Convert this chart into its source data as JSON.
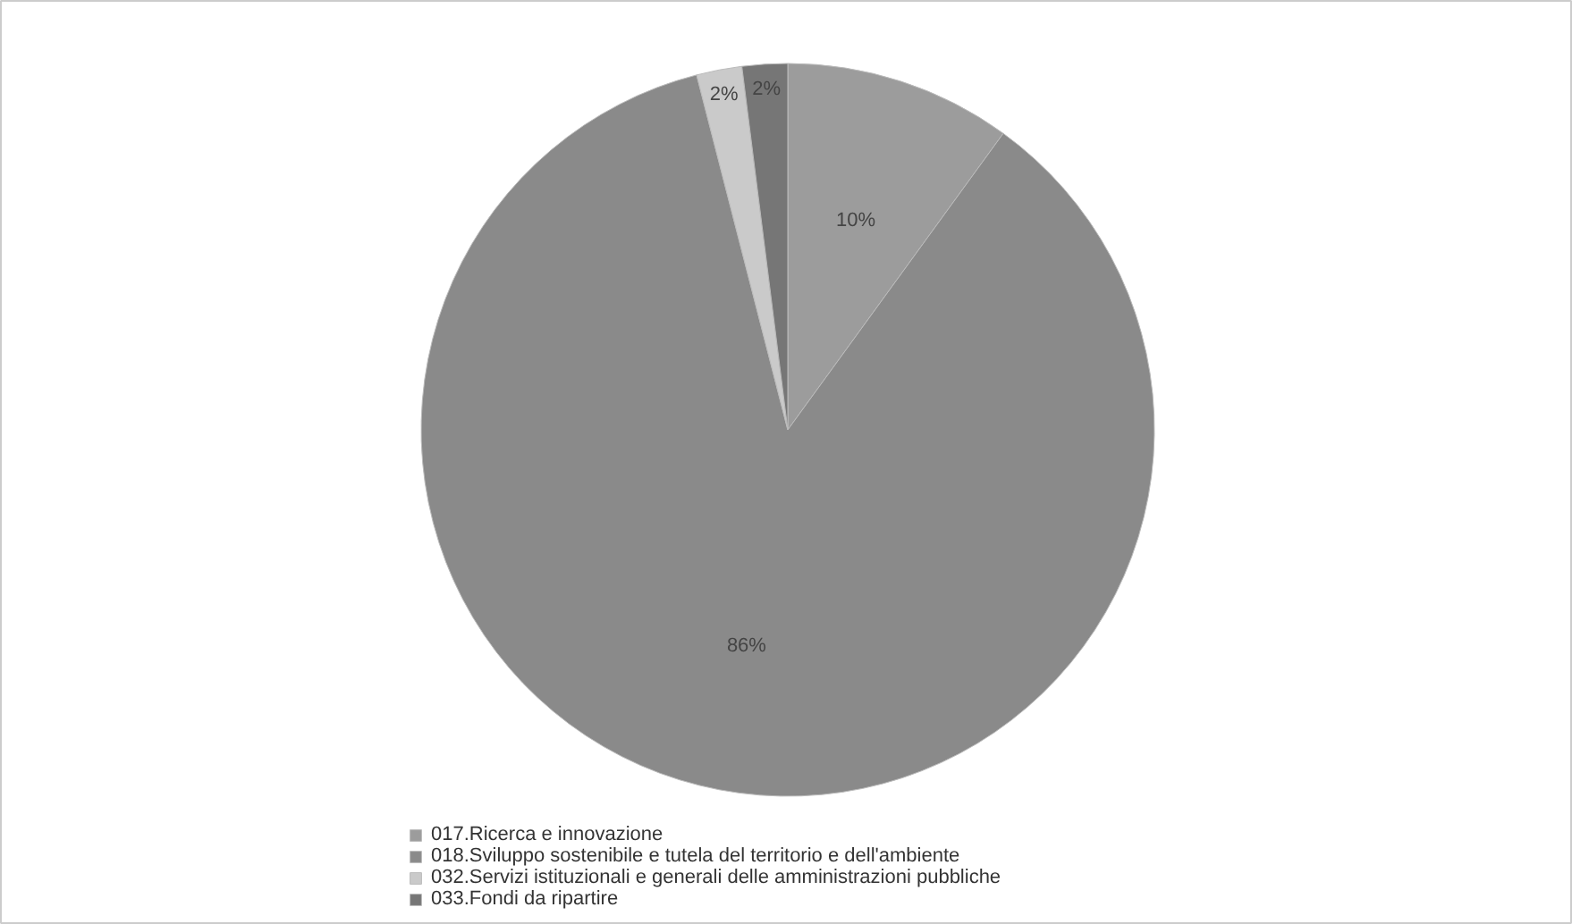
{
  "chart_data": {
    "type": "pie",
    "categories": [
      "017.Ricerca e innovazione",
      "018.Sviluppo sostenibile e tutela del territorio e dell'ambiente",
      "032.Servizi istituzionali e generali delle amministrazioni pubbliche",
      "033.Fondi da ripartire"
    ],
    "values": [
      10,
      86,
      2,
      2
    ],
    "colors": [
      "#9c9c9c",
      "#8a8a8a",
      "#cacaca",
      "#767676"
    ],
    "value_labels": [
      "10%",
      "86%",
      "2%",
      "2%"
    ],
    "legend": "bottom"
  }
}
